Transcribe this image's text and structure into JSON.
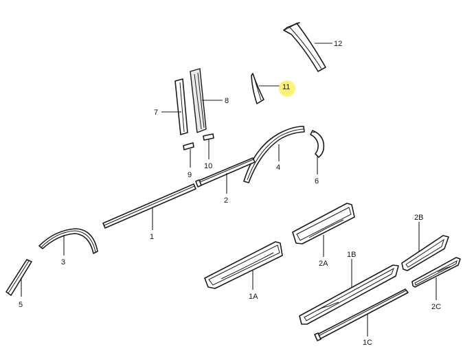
{
  "callouts": {
    "c1": "1",
    "c1A": "1A",
    "c1B": "1B",
    "c1C": "1C",
    "c2": "2",
    "c2A": "2A",
    "c2B": "2B",
    "c2C": "2C",
    "c3": "3",
    "c4": "4",
    "c5": "5",
    "c6": "6",
    "c7": "7",
    "c8": "8",
    "c9": "9",
    "c10": "10",
    "c11": "11",
    "c12": "12"
  },
  "highlight": {
    "callout": "11",
    "color": "#fff27a"
  },
  "colors": {
    "line": "#1a1a1a",
    "background": "#ffffff",
    "shade": "#e9e9e9"
  }
}
